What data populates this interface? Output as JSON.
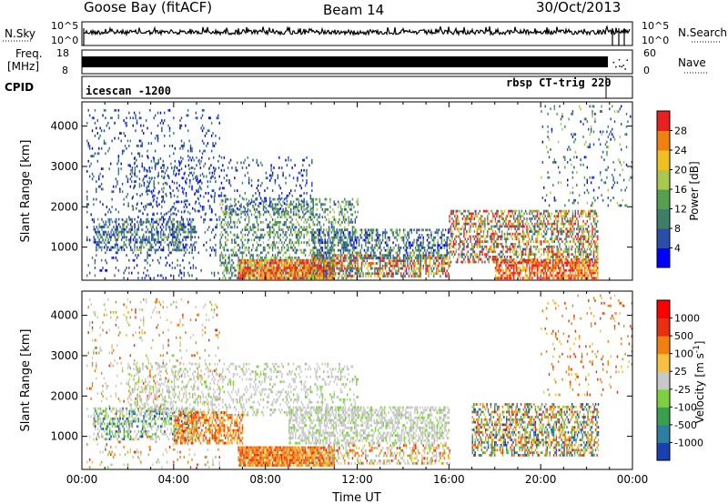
{
  "header": {
    "station": "Goose Bay (fitACF)",
    "beam": "Beam 14",
    "date": "30/Oct/2013"
  },
  "strip_nsky": {
    "left_label": "N.Sky",
    "right_label": "N.Search",
    "left_ticks": [
      "10^5",
      "10^0"
    ],
    "right_ticks": [
      "10^5",
      "10^0"
    ]
  },
  "strip_freq": {
    "left_label": "Freq.",
    "left_unit": "[MHz]",
    "right_label": "Nave",
    "left_ticks": [
      "18",
      "8"
    ],
    "right_ticks": [
      "60",
      "0"
    ]
  },
  "strip_cpid": {
    "label": "CPID",
    "segments": [
      "icescan -1200",
      "rbsp CT-trig 220"
    ]
  },
  "chart_data": [
    {
      "type": "heatmap",
      "name": "power",
      "xlabel": "",
      "ylabel": "Slant Range [km]",
      "y_ticks": [
        "4000",
        "3000",
        "2000",
        "1000"
      ],
      "y_tick_values": [
        4000,
        3000,
        2000,
        1000
      ],
      "xlim": [
        0,
        24
      ],
      "ylim": [
        180,
        4600
      ],
      "colorbar": {
        "label": "Power [dB]",
        "tick_labels": [
          "28",
          "24",
          "20",
          "16",
          "12",
          "8",
          "4"
        ],
        "colors": [
          "#0000ff",
          "#2b4fa8",
          "#3f7f6a",
          "#54a050",
          "#a8c850",
          "#f0c020",
          "#f08010",
          "#e82020"
        ]
      }
    },
    {
      "type": "heatmap",
      "name": "velocity",
      "xlabel": "Time UT",
      "ylabel": "Slant Range [km]",
      "y_ticks": [
        "4000",
        "3000",
        "2000",
        "1000"
      ],
      "y_tick_values": [
        4000,
        3000,
        2000,
        1000
      ],
      "xlim": [
        0,
        24
      ],
      "ylim": [
        180,
        4600
      ],
      "x_ticks": [
        "00:00",
        "04:00",
        "08:00",
        "12:00",
        "16:00",
        "20:00",
        "00:00"
      ],
      "colorbar": {
        "label": "Velocity [m s",
        "label_superscript": "-1",
        "label_close": "]",
        "tick_labels": [
          "1000",
          "500",
          "100",
          "25",
          "-25",
          "-100",
          "-500",
          "-1000"
        ],
        "colors": [
          "#1a3fb0",
          "#2e7fa0",
          "#3aa050",
          "#7fd040",
          "#c8c8c8",
          "#f8c040",
          "#f08010",
          "#e83010",
          "#ff0000"
        ]
      }
    }
  ]
}
